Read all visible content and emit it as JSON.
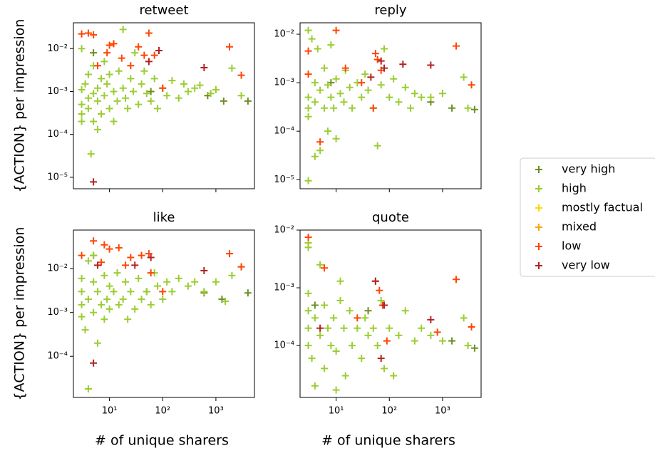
{
  "chart_data": [
    {
      "type": "scatter",
      "title": "retweet",
      "ylabel": "{ACTION} per impression",
      "xscale": "log",
      "yscale": "log",
      "legend": "right",
      "xlim": [
        2.1,
        5300
      ],
      "xticks": [
        10,
        100,
        1000
      ],
      "xticklabels": false,
      "ylim": [
        5.4e-06,
        0.04
      ],
      "yticks": [
        {
          "value": 1e-05,
          "label": "10⁻⁵"
        },
        {
          "value": 0.0001,
          "label": "10⁻⁴"
        },
        {
          "value": 0.001,
          "label": "10⁻³"
        },
        {
          "value": 0.01,
          "label": "10⁻²"
        }
      ],
      "series": [
        {
          "name": "very high",
          "color": "#6b8e23",
          "x": [
            5,
            60,
            700,
            1400,
            4000
          ],
          "values": [
            0.008,
            0.001,
            0.0008,
            0.0006,
            0.0006
          ]
        },
        {
          "name": "high",
          "color": "#9acd32",
          "x": [
            3,
            3,
            3,
            3,
            3,
            3.5,
            4,
            4,
            4,
            4.5,
            5,
            5,
            5,
            6,
            6,
            6,
            7,
            7,
            8,
            8,
            9,
            10,
            10,
            12,
            12,
            14,
            15,
            18,
            18,
            20,
            22,
            25,
            28,
            30,
            35,
            40,
            45,
            50,
            60,
            70,
            80,
            100,
            120,
            150,
            200,
            250,
            300,
            400,
            500,
            800,
            1000,
            2000,
            3000
          ],
          "values": [
            0.0011,
            0.0005,
            0.0003,
            0.0002,
            0.01,
            0.0015,
            0.0007,
            0.0004,
            0.0025,
            3.5e-05,
            0.0009,
            0.0002,
            0.004,
            0.0012,
            0.0006,
            0.00013,
            0.002,
            0.0003,
            0.0008,
            0.005,
            0.0015,
            0.0004,
            0.0025,
            0.001,
            0.0002,
            0.0006,
            0.003,
            0.028,
            0.0012,
            0.0007,
            0.0004,
            0.002,
            0.001,
            0.008,
            0.0005,
            0.0015,
            0.003,
            0.0009,
            0.0006,
            0.002,
            0.0004,
            0.0012,
            0.0008,
            0.0018,
            0.0007,
            0.0015,
            0.001,
            0.0012,
            0.0014,
            0.0009,
            0.0011,
            0.0035,
            0.0008
          ]
        },
        {
          "name": "mostly factual",
          "color": "#ffd700",
          "x": [],
          "values": []
        },
        {
          "name": "mixed",
          "color": "#ffa500",
          "x": [],
          "values": []
        },
        {
          "name": "low",
          "color": "#ff4500",
          "x": [
            3,
            4,
            5,
            6,
            9,
            10,
            12,
            17,
            25,
            35,
            45,
            55,
            70,
            100,
            1800,
            3000
          ],
          "values": [
            0.022,
            0.023,
            0.021,
            0.004,
            0.008,
            0.012,
            0.013,
            0.006,
            0.004,
            0.011,
            0.007,
            0.023,
            0.007,
            0.0012,
            0.011,
            0.0024
          ]
        },
        {
          "name": "very low",
          "color": "#b22222",
          "x": [
            5,
            55,
            85,
            600
          ],
          "values": [
            7.8e-06,
            0.005,
            0.009,
            0.0036
          ]
        }
      ]
    },
    {
      "type": "scatter",
      "title": "reply",
      "xscale": "log",
      "yscale": "log",
      "xlim": [
        2.1,
        5300
      ],
      "xticks": [
        10,
        100,
        1000
      ],
      "xticklabels": false,
      "ylim": [
        6.5e-06,
        0.0172
      ],
      "yticks": [
        {
          "value": 1e-05,
          "label": "10⁻⁵"
        },
        {
          "value": 0.0001,
          "label": "10⁻⁴"
        },
        {
          "value": 0.001,
          "label": "10⁻³"
        },
        {
          "value": 0.01,
          "label": "10⁻²"
        }
      ],
      "series": [
        {
          "name": "very high",
          "color": "#6b8e23",
          "x": [
            8,
            600,
            1500,
            4000
          ],
          "values": [
            0.001,
            0.0004,
            0.0003,
            0.00028
          ]
        },
        {
          "name": "high",
          "color": "#9acd32",
          "x": [
            3,
            3,
            3,
            3,
            3,
            3.5,
            4,
            4,
            4,
            4.5,
            5,
            5,
            6,
            6,
            7,
            7,
            8,
            8,
            9,
            10,
            10,
            12,
            14,
            15,
            18,
            20,
            25,
            30,
            35,
            40,
            50,
            60,
            70,
            80,
            100,
            120,
            150,
            200,
            250,
            300,
            400,
            600,
            1000,
            2500,
            3000
          ],
          "values": [
            9.5e-06,
            0.012,
            0.0005,
            0.0003,
            0.0002,
            0.008,
            0.001,
            0.0004,
            3e-05,
            0.005,
            0.0007,
            4e-05,
            0.0003,
            0.002,
            0.0009,
            0.0001,
            0.0005,
            0.006,
            0.0003,
            0.0012,
            7e-05,
            0.0006,
            0.0004,
            0.0018,
            0.0008,
            0.0003,
            0.001,
            0.0005,
            0.0015,
            0.0007,
            0.0003,
            5e-05,
            0.0009,
            0.005,
            0.0005,
            0.0012,
            0.0004,
            0.0008,
            0.0003,
            0.0006,
            0.0005,
            0.0005,
            0.0006,
            0.0013,
            0.0003
          ]
        },
        {
          "name": "mostly factual",
          "color": "#ffd700",
          "x": [],
          "values": []
        },
        {
          "name": "mixed",
          "color": "#ffa500",
          "x": [],
          "values": []
        },
        {
          "name": "low",
          "color": "#ff4500",
          "x": [
            3,
            3,
            5,
            10,
            15,
            30,
            50,
            55,
            60,
            70,
            1800,
            3500
          ],
          "values": [
            0.0045,
            0.0015,
            6e-05,
            0.012,
            0.002,
            0.001,
            0.0003,
            0.004,
            0.003,
            0.0018,
            0.0057,
            0.0009
          ]
        },
        {
          "name": "very low",
          "color": "#b22222",
          "x": [
            45,
            70,
            80,
            180,
            600
          ],
          "values": [
            0.0013,
            0.0028,
            0.002,
            0.0024,
            0.0023
          ]
        }
      ]
    },
    {
      "type": "scatter",
      "title": "like",
      "ylabel": "{ACTION} per impression",
      "xlabel": "# of unique sharers",
      "xscale": "log",
      "yscale": "log",
      "xlim": [
        2.1,
        5300
      ],
      "xticks": [
        {
          "value": 10,
          "label": "10¹"
        },
        {
          "value": 100,
          "label": "10²"
        },
        {
          "value": 1000,
          "label": "10³"
        }
      ],
      "xticklabels": true,
      "ylim": [
        1.15e-05,
        0.076
      ],
      "yticks": [
        {
          "value": 0.0001,
          "label": "10⁻⁴"
        },
        {
          "value": 0.001,
          "label": "10⁻³"
        },
        {
          "value": 0.01,
          "label": "10⁻²"
        }
      ],
      "series": [
        {
          "name": "very high",
          "color": "#6b8e23",
          "x": [
            5,
            50,
            600,
            1300,
            4000
          ],
          "values": [
            0.02,
            0.003,
            0.0028,
            0.002,
            0.0028
          ]
        },
        {
          "name": "high",
          "color": "#9acd32",
          "x": [
            3,
            3,
            3,
            3,
            3.5,
            4,
            4,
            4,
            5,
            5,
            5,
            6,
            6,
            7,
            8,
            8,
            9,
            10,
            10,
            12,
            14,
            15,
            18,
            20,
            22,
            25,
            30,
            35,
            40,
            50,
            60,
            70,
            80,
            100,
            120,
            150,
            200,
            300,
            400,
            600,
            1000,
            1500,
            2000,
            3000
          ],
          "values": [
            0.003,
            0.0015,
            0.0008,
            0.006,
            0.0004,
            0.002,
            0.015,
            1.8e-05,
            0.005,
            0.001,
            0.02,
            0.0002,
            0.003,
            0.0015,
            0.007,
            0.0007,
            0.002,
            0.004,
            0.0012,
            0.003,
            0.008,
            0.0015,
            0.002,
            0.005,
            0.0007,
            0.003,
            0.0012,
            0.006,
            0.002,
            0.003,
            0.0015,
            0.008,
            0.004,
            0.002,
            0.005,
            0.003,
            0.006,
            0.004,
            0.005,
            0.003,
            0.005,
            0.0018,
            0.007,
            0.011
          ]
        },
        {
          "name": "mostly factual",
          "color": "#ffd700",
          "x": [],
          "values": []
        },
        {
          "name": "mixed",
          "color": "#ffa500",
          "x": [],
          "values": []
        },
        {
          "name": "low",
          "color": "#ff4500",
          "x": [
            3,
            5,
            7,
            8,
            10,
            15,
            20,
            25,
            40,
            55,
            60,
            100,
            1800,
            3000
          ],
          "values": [
            0.02,
            0.043,
            0.014,
            0.035,
            0.028,
            0.03,
            0.012,
            0.018,
            0.02,
            0.022,
            0.008,
            0.003,
            0.022,
            0.011
          ]
        },
        {
          "name": "very low",
          "color": "#b22222",
          "x": [
            5,
            6,
            30,
            60,
            600
          ],
          "values": [
            7e-05,
            0.012,
            0.012,
            0.018,
            0.009
          ]
        }
      ]
    },
    {
      "type": "scatter",
      "title": "quote",
      "xlabel": "# of unique sharers",
      "xscale": "log",
      "yscale": "log",
      "xlim": [
        2.1,
        5300
      ],
      "xticks": [
        {
          "value": 10,
          "label": "10¹"
        },
        {
          "value": 100,
          "label": "10²"
        },
        {
          "value": 1000,
          "label": "10³"
        }
      ],
      "xticklabels": true,
      "ylim": [
        1.26e-05,
        0.01
      ],
      "yticks": [
        {
          "value": 0.0001,
          "label": "10⁻⁴"
        },
        {
          "value": 0.001,
          "label": "10⁻³"
        },
        {
          "value": 0.01,
          "label": "10⁻²"
        }
      ],
      "series": [
        {
          "name": "very high",
          "color": "#6b8e23",
          "x": [
            4,
            40,
            1500,
            4000
          ],
          "values": [
            0.0005,
            0.0004,
            0.00012,
            9e-05
          ]
        },
        {
          "name": "high",
          "color": "#9acd32",
          "x": [
            3,
            3,
            3,
            3,
            3,
            3,
            3.5,
            4,
            4,
            5,
            5,
            6,
            6,
            7,
            8,
            9,
            10,
            10,
            12,
            12,
            14,
            15,
            18,
            20,
            25,
            30,
            35,
            40,
            50,
            60,
            70,
            80,
            100,
            120,
            150,
            200,
            300,
            400,
            600,
            1000,
            2500,
            3000
          ],
          "values": [
            0.006,
            0.005,
            0.0008,
            0.0004,
            0.0002,
            0.0001,
            6e-05,
            2e-05,
            0.0003,
            0.0025,
            0.00015,
            0.0005,
            4e-05,
            0.0002,
            0.0001,
            0.0003,
            1.7e-05,
            8e-05,
            0.0006,
            0.0013,
            0.0002,
            3e-05,
            0.0004,
            0.0001,
            0.0002,
            6e-05,
            0.0003,
            0.00015,
            0.0002,
            0.0001,
            0.0006,
            4e-05,
            0.0002,
            3e-05,
            0.00015,
            0.0004,
            0.00012,
            0.0002,
            0.00015,
            0.00012,
            0.0003,
            0.0001
          ]
        },
        {
          "name": "mostly factual",
          "color": "#ffd700",
          "x": [],
          "values": []
        },
        {
          "name": "mixed",
          "color": "#ffa500",
          "x": [],
          "values": []
        },
        {
          "name": "low",
          "color": "#ff4500",
          "x": [
            3,
            6,
            25,
            55,
            65,
            75,
            90,
            800,
            1800,
            3500
          ],
          "values": [
            0.0075,
            0.0022,
            0.0003,
            0.0013,
            0.0009,
            0.0005,
            0.00012,
            0.00017,
            0.0014,
            0.00021
          ]
        },
        {
          "name": "very low",
          "color": "#b22222",
          "x": [
            5,
            55,
            70,
            80,
            600
          ],
          "values": [
            0.0002,
            0.0013,
            6e-05,
            0.0005,
            0.00028
          ]
        }
      ]
    }
  ]
}
